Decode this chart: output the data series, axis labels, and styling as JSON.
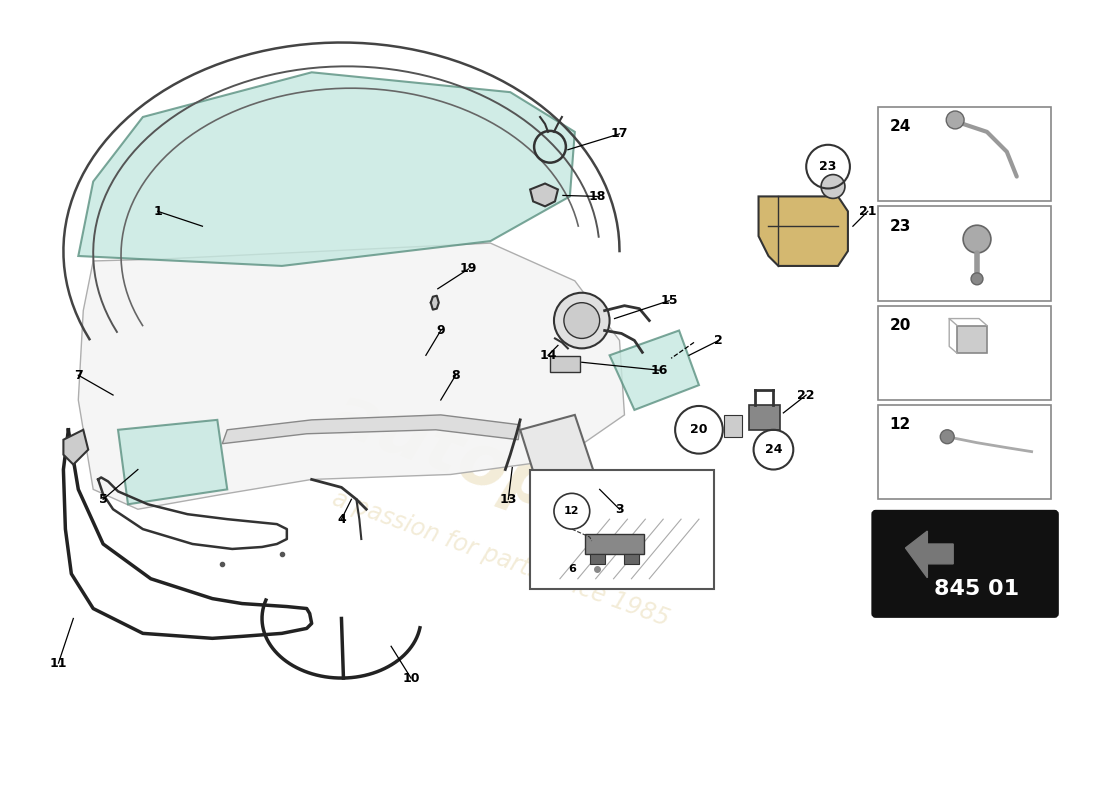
{
  "background_color": "#ffffff",
  "part_number": "845 01",
  "watermark_color_logo": "#c8a84b",
  "watermark_color_text": "#c8a84b",
  "glass_fill": "#c5e8e0",
  "glass_edge": "#5a9080",
  "roof_fill": "#f5f5f5",
  "roof_edge": "#888888",
  "line_color": "#333333",
  "sidebar_bg": "#ffffff",
  "sidebar_edge": "#999999",
  "pn_bg": "#111111",
  "pn_text": "#ffffff",
  "arrow_fill": "#888888"
}
